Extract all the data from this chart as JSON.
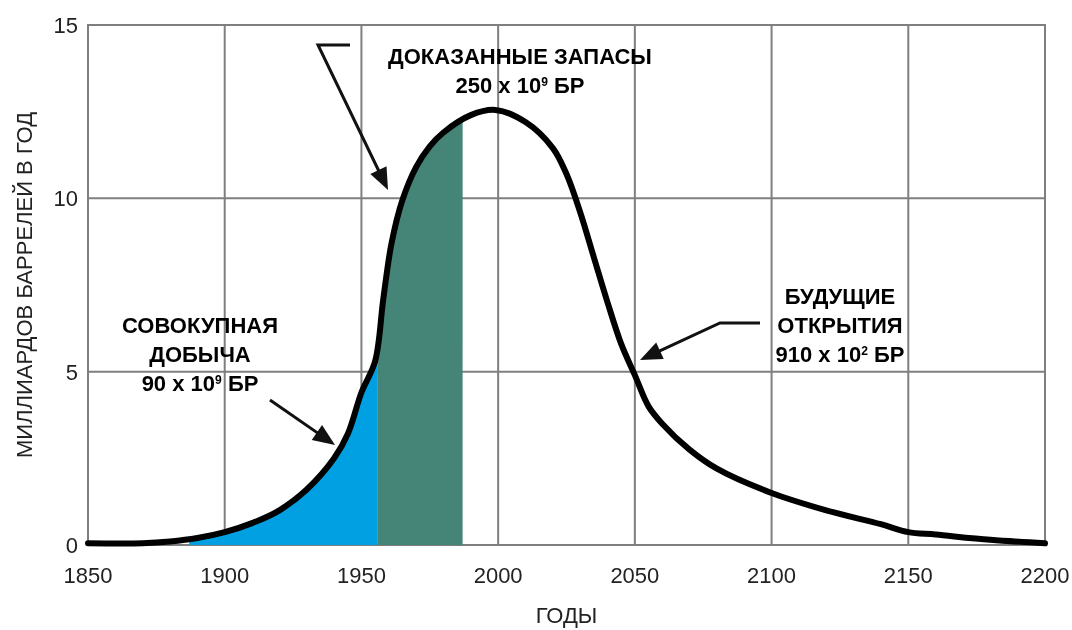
{
  "chart_data": {
    "type": "line",
    "xlabel": "ГОДЫ",
    "ylabel": "МИЛЛИАРДОВ БАРРЕЛЕЙ В ГОД",
    "xlim": [
      1850,
      2200
    ],
    "ylim": [
      0,
      15
    ],
    "xticks": [
      1850,
      1900,
      1950,
      2000,
      2050,
      2100,
      2150,
      2200
    ],
    "yticks": [
      0,
      5,
      10,
      15
    ],
    "grid": true,
    "series": [
      {
        "type": "area",
        "color": "#00a0e3",
        "x": [
          1887,
          1890,
          1900,
          1910,
          1920,
          1930,
          1940,
          1945,
          1950,
          1955,
          1956
        ],
        "values": [
          0.15,
          0.2,
          0.37,
          0.63,
          1.0,
          1.6,
          2.5,
          3.2,
          4.4,
          5.3,
          5.7
        ]
      },
      {
        "type": "area",
        "color": "#458578",
        "x": [
          1956,
          1958,
          1961,
          1965,
          1970,
          1975,
          1980,
          1985,
          1987
        ],
        "values": [
          5.7,
          7.1,
          8.7,
          9.95,
          10.9,
          11.5,
          11.9,
          12.2,
          12.3
        ]
      },
      {
        "type": "line",
        "color": "#000000",
        "x": [
          1850,
          1870,
          1880,
          1890,
          1900,
          1910,
          1920,
          1930,
          1940,
          1945,
          1950,
          1955,
          1958,
          1961,
          1965,
          1970,
          1975,
          1980,
          1990,
          1999,
          2010,
          2020,
          2025,
          2030,
          2035,
          2040,
          2045,
          2050,
          2055,
          2060,
          2070,
          2080,
          2100,
          2120,
          2140,
          2150,
          2160,
          2180,
          2200
        ],
        "values": [
          0.05,
          0.05,
          0.1,
          0.2,
          0.37,
          0.63,
          1.0,
          1.6,
          2.5,
          3.2,
          4.4,
          5.3,
          7.1,
          8.7,
          9.95,
          10.9,
          11.5,
          11.9,
          12.4,
          12.55,
          12.2,
          11.45,
          10.7,
          9.6,
          8.3,
          7.0,
          5.8,
          4.9,
          4.0,
          3.5,
          2.75,
          2.2,
          1.5,
          1.0,
          0.6,
          0.37,
          0.3,
          0.15,
          0.05
        ]
      }
    ],
    "annotations": [
      "ДОКАЗАННЫЕ ЗАПАСЫ\n250 x 10$^{9}$ БР",
      "СОВОКУПНАЯ\nДОБЫЧА\n90 x 10$^{9}$ БР",
      "БУДУЩИЕ\nОТКРЫТИЯ\n910 x 10$^{2}$ БР"
    ]
  }
}
